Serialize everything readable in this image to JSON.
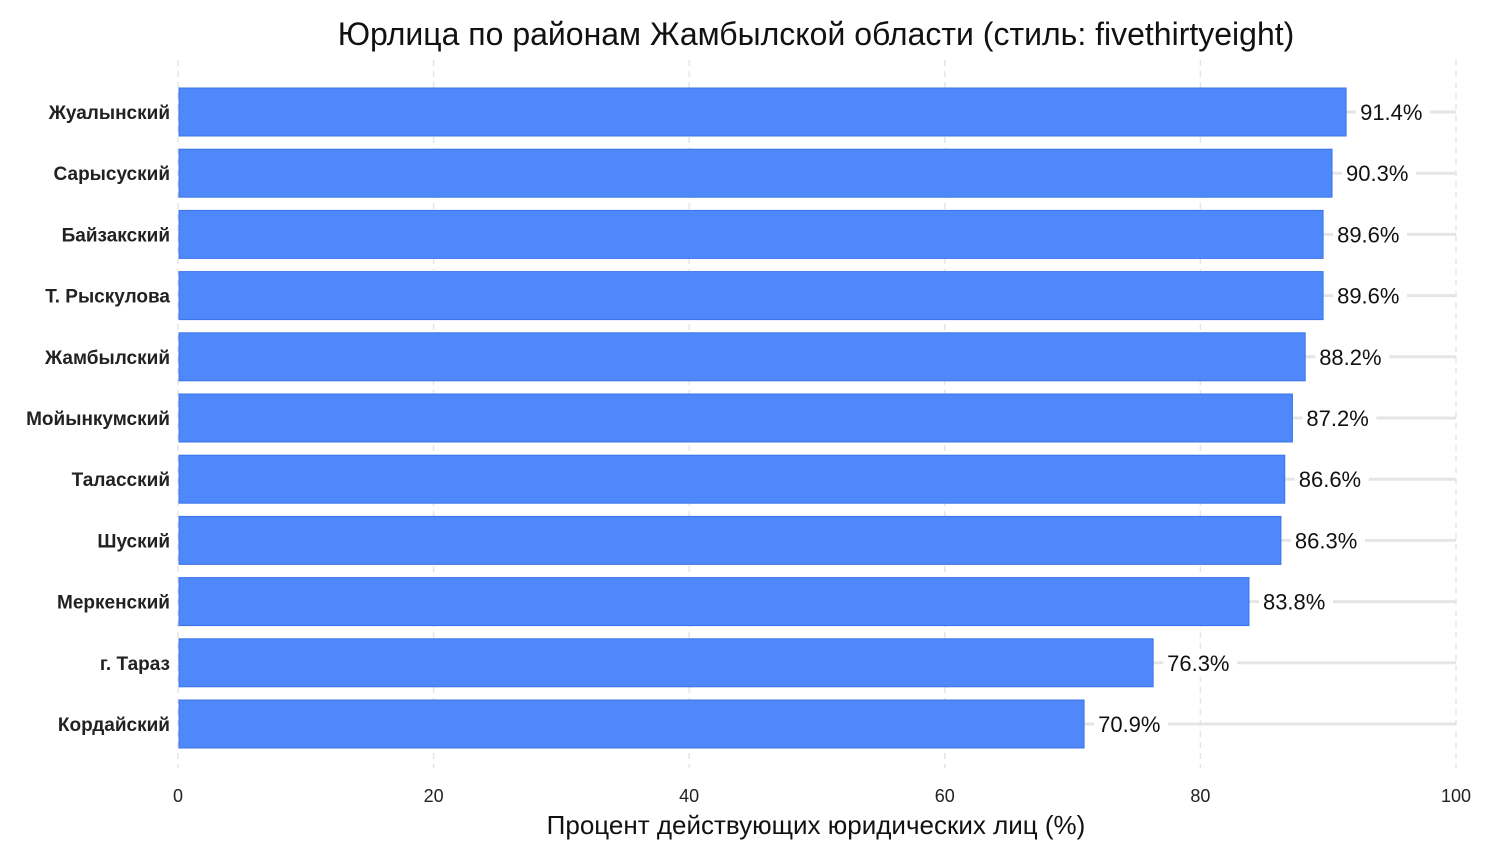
{
  "chart_data": {
    "type": "bar",
    "orientation": "horizontal",
    "title": "Юрлица по районам Жамбылской области (стиль: fivethirtyeight)",
    "xlabel": "Процент действующих юридических лиц (%)",
    "ylabel": "",
    "xlim": [
      0,
      100
    ],
    "xticks": [
      "0",
      "20",
      "40",
      "60",
      "80",
      "100"
    ],
    "grid": true,
    "categories": [
      "Жуалынский",
      "Сарысуский",
      "Байзакский",
      "Т. Рыскулова",
      "Жамбылский",
      "Мойынкумский",
      "Таласский",
      "Шуский",
      "Меркенский",
      "г. Тараз",
      "Кордайский"
    ],
    "values": [
      91.4,
      90.3,
      89.6,
      89.6,
      88.2,
      87.2,
      86.6,
      86.3,
      83.8,
      76.3,
      70.9
    ],
    "value_labels": [
      "91.4%",
      "90.3%",
      "89.6%",
      "89.6%",
      "88.2%",
      "87.2%",
      "86.6%",
      "86.3%",
      "83.8%",
      "76.3%",
      "70.9%"
    ],
    "bar_color": "#4f88fa",
    "bar_edge_color": "#3a74e8",
    "grid_color": "#e5e5e5"
  }
}
